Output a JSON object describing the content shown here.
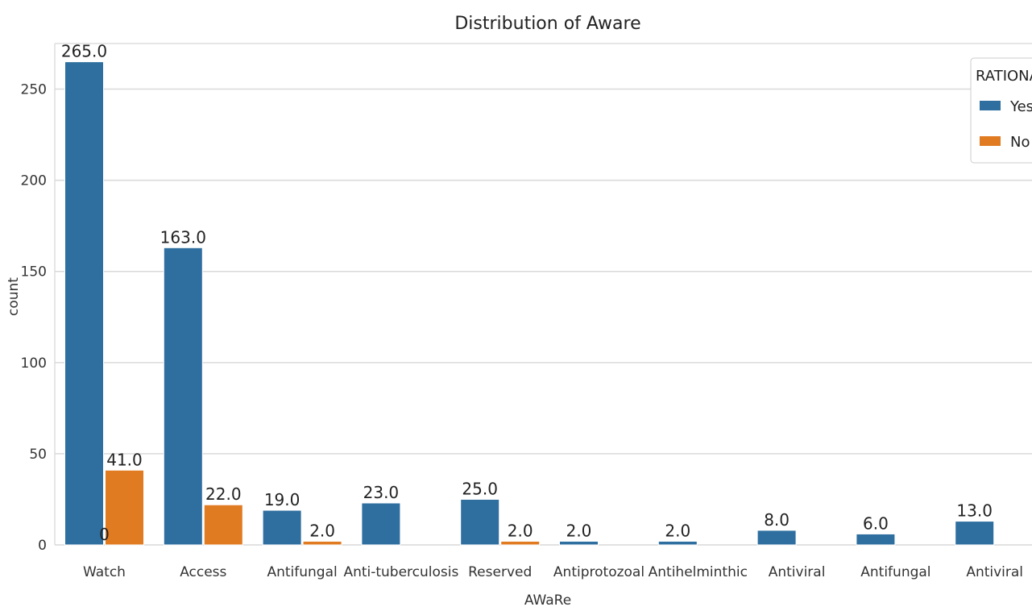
{
  "chart_data": {
    "type": "bar",
    "title": "Distribution of Aware",
    "xlabel": "AWaRe",
    "ylabel": "count",
    "categories": [
      "Watch",
      "Access",
      "Antifungal",
      "Anti-tuberculosis",
      "Reserved",
      "Antiprotozoal",
      "Antihelminthic",
      "Antiviral",
      "Antifungal",
      "Antiviral"
    ],
    "ylim": [
      0,
      275
    ],
    "yticks": [
      0,
      50,
      100,
      150,
      200,
      250
    ],
    "ytick_labels": [
      "0",
      "50",
      "100",
      "150",
      "200",
      "250"
    ],
    "grid": "horizontal",
    "legend": {
      "title": "RATIONAL",
      "placement": "top-right"
    },
    "series": [
      {
        "name": "Yes",
        "color": "#2e6f9f",
        "values": [
          265,
          163,
          19,
          23,
          25,
          2,
          2,
          8,
          6,
          13
        ],
        "labels": [
          "265.0",
          "163.0",
          "19.0",
          "23.0",
          "25.0",
          "2.0",
          "2.0",
          "8.0",
          "6.0",
          "13.0"
        ]
      },
      {
        "name": "No",
        "color": "#e07b22",
        "values": [
          41,
          22,
          2,
          null,
          2,
          null,
          null,
          null,
          null,
          null
        ],
        "labels": [
          "41.0",
          "22.0",
          "2.0",
          null,
          "2.0",
          null,
          null,
          null,
          null,
          null
        ]
      }
    ],
    "annotations": [
      {
        "text": "0",
        "category_index": 0
      }
    ]
  }
}
